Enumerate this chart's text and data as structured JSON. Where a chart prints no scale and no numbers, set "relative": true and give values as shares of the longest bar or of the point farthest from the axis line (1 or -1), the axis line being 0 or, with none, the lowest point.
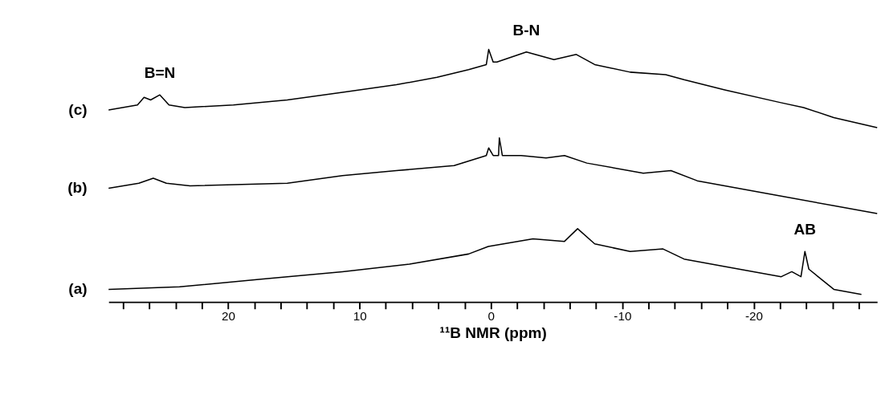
{
  "chart_data": {
    "type": "line",
    "relative": true,
    "xlabel": "¹¹B NMR (ppm)",
    "xlim": [
      29.1,
      -29.4
    ],
    "xticks": [
      {
        "value": 28,
        "label": null
      },
      {
        "value": 26,
        "label": null
      },
      {
        "value": 24,
        "label": null
      },
      {
        "value": 22,
        "label": null
      },
      20,
      {
        "value": 18,
        "label": null
      },
      {
        "value": 16,
        "label": null
      },
      {
        "value": 14,
        "label": null
      },
      {
        "value": 12,
        "label": null
      },
      10,
      {
        "value": 8,
        "label": null
      },
      {
        "value": 6,
        "label": null
      },
      {
        "value": 4,
        "label": null
      },
      {
        "value": 2,
        "label": null
      },
      0,
      {
        "value": -2,
        "label": null
      },
      {
        "value": -4,
        "label": null
      },
      {
        "value": -6,
        "label": null
      },
      {
        "value": -8,
        "label": null
      },
      -10,
      {
        "value": -12,
        "label": null
      },
      {
        "value": -14,
        "label": null
      },
      {
        "value": -16,
        "label": null
      },
      {
        "value": -18,
        "label": null
      },
      -20,
      {
        "value": -22,
        "label": null
      },
      {
        "value": -24,
        "label": null
      },
      {
        "value": -26,
        "label": null
      },
      {
        "value": -28,
        "label": null
      }
    ],
    "grid": false,
    "legend": false,
    "tick_labels": "x",
    "marker": "none",
    "line_style": "solid",
    "series": [
      {
        "name": "(c)",
        "color": "#000000",
        "x": [
          29.1,
          26.9,
          26.4,
          25.9,
          25.2,
          24.5,
          23.3,
          19.6,
          15.5,
          11.3,
          7.2,
          4.1,
          1.7,
          0.35,
          0.17,
          -0.17,
          -0.46,
          -2.7,
          -4.8,
          -6.5,
          -7.9,
          -10.6,
          -13.3,
          -14.7,
          -17.8,
          -22.0,
          -23.8,
          -26.1,
          -29.4
        ],
        "values": [
          0.76,
          0.78,
          0.81,
          0.8,
          0.82,
          0.78,
          0.77,
          0.78,
          0.8,
          0.83,
          0.86,
          0.89,
          0.92,
          0.94,
          1.0,
          0.95,
          0.95,
          0.99,
          0.96,
          0.98,
          0.94,
          0.91,
          0.9,
          0.88,
          0.84,
          0.79,
          0.77,
          0.73,
          0.69
        ]
      },
      {
        "name": "(b)",
        "color": "#000000",
        "x": [
          29.1,
          26.8,
          25.7,
          24.7,
          22.9,
          15.5,
          11.3,
          7.2,
          2.8,
          0.35,
          0.17,
          -0.17,
          -0.58,
          -0.64,
          -0.87,
          -2.3,
          -4.2,
          -5.6,
          -7.3,
          -11.6,
          -13.7,
          -15.7,
          -22.0,
          -29.4
        ],
        "values": [
          0.45,
          0.47,
          0.49,
          0.47,
          0.46,
          0.47,
          0.5,
          0.52,
          0.54,
          0.58,
          0.61,
          0.58,
          0.58,
          0.65,
          0.58,
          0.58,
          0.57,
          0.58,
          0.55,
          0.51,
          0.52,
          0.48,
          0.42,
          0.35
        ]
      },
      {
        "name": "(a)",
        "color": "#000000",
        "x": [
          29.1,
          23.7,
          17.5,
          11.3,
          6.2,
          1.7,
          0.2,
          -3.2,
          -5.6,
          -6.6,
          -7.9,
          -10.6,
          -13.1,
          -14.7,
          -17.8,
          -22.1,
          -22.9,
          -23.6,
          -23.9,
          -24.2,
          -26.1,
          -28.2
        ],
        "values": [
          0.05,
          0.06,
          0.09,
          0.12,
          0.15,
          0.19,
          0.22,
          0.25,
          0.24,
          0.29,
          0.23,
          0.2,
          0.21,
          0.17,
          0.14,
          0.1,
          0.12,
          0.1,
          0.2,
          0.13,
          0.05,
          0.03
        ]
      }
    ],
    "annotations": [
      {
        "text": "B=N",
        "x": 25.2,
        "y": 0.82
      },
      {
        "text": "B-N",
        "x": -2.7,
        "y": 0.99
      },
      {
        "text": "AB",
        "x": -23.9,
        "y": 0.2
      }
    ]
  }
}
